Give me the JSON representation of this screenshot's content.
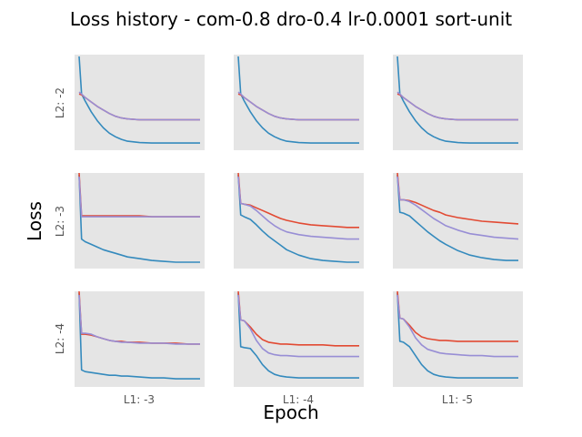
{
  "title": "Loss history - com-0.8 dro-0.4 lr-0.0001 sort-unit",
  "xlabel": "Epoch",
  "ylabel": "Loss",
  "colors": {
    "panel_bg": "#e5e5e5",
    "series_blue": "#348abd",
    "series_purple": "#988ed5",
    "series_red": "#e24a33"
  },
  "chart_data": {
    "type": "line",
    "grid": false,
    "title": "Loss history - com-0.8 dro-0.4 lr-0.0001 sort-unit",
    "xlabel": "Epoch",
    "ylabel": "Loss",
    "row_labels": [
      "L2: -2",
      "L2: -3",
      "L2: -4"
    ],
    "col_labels": [
      "L1: -3",
      "L1: -4",
      "L1: -5"
    ],
    "x": [
      0,
      0.02,
      0.05,
      0.1,
      0.15,
      0.2,
      0.25,
      0.3,
      0.35,
      0.4,
      0.5,
      0.6,
      0.7,
      0.8,
      0.9,
      1.0
    ],
    "panels": [
      {
        "row": 0,
        "col": 0,
        "series": [
          {
            "color": "#348abd",
            "values": [
              1.0,
              0.58,
              0.5,
              0.38,
              0.28,
              0.2,
              0.14,
              0.1,
              0.07,
              0.05,
              0.035,
              0.03,
              0.03,
              0.03,
              0.03,
              0.03
            ]
          },
          {
            "color": "#e24a33",
            "values": [
              0.58,
              0.57,
              0.54,
              0.49,
              0.44,
              0.4,
              0.36,
              0.33,
              0.31,
              0.3,
              0.29,
              0.29,
              0.29,
              0.29,
              0.29,
              0.29
            ]
          },
          {
            "color": "#988ed5",
            "values": [
              0.6,
              0.58,
              0.54,
              0.49,
              0.44,
              0.4,
              0.36,
              0.33,
              0.31,
              0.3,
              0.29,
              0.29,
              0.29,
              0.29,
              0.29,
              0.29
            ]
          }
        ]
      },
      {
        "row": 0,
        "col": 1,
        "series": [
          {
            "color": "#348abd",
            "values": [
              1.0,
              0.58,
              0.5,
              0.38,
              0.28,
              0.2,
              0.14,
              0.1,
              0.07,
              0.05,
              0.035,
              0.03,
              0.03,
              0.03,
              0.03,
              0.03
            ]
          },
          {
            "color": "#e24a33",
            "values": [
              0.58,
              0.57,
              0.54,
              0.49,
              0.44,
              0.4,
              0.36,
              0.33,
              0.31,
              0.3,
              0.29,
              0.29,
              0.29,
              0.29,
              0.29,
              0.29
            ]
          },
          {
            "color": "#988ed5",
            "values": [
              0.6,
              0.58,
              0.54,
              0.49,
              0.44,
              0.4,
              0.36,
              0.33,
              0.31,
              0.3,
              0.29,
              0.29,
              0.29,
              0.29,
              0.29,
              0.29
            ]
          }
        ]
      },
      {
        "row": 0,
        "col": 2,
        "series": [
          {
            "color": "#348abd",
            "values": [
              1.0,
              0.58,
              0.5,
              0.38,
              0.28,
              0.2,
              0.14,
              0.1,
              0.07,
              0.05,
              0.035,
              0.03,
              0.03,
              0.03,
              0.03,
              0.03
            ]
          },
          {
            "color": "#e24a33",
            "values": [
              0.58,
              0.57,
              0.54,
              0.49,
              0.44,
              0.4,
              0.36,
              0.33,
              0.31,
              0.3,
              0.29,
              0.29,
              0.29,
              0.29,
              0.29,
              0.29
            ]
          },
          {
            "color": "#988ed5",
            "values": [
              0.6,
              0.58,
              0.54,
              0.49,
              0.44,
              0.4,
              0.36,
              0.33,
              0.31,
              0.3,
              0.29,
              0.29,
              0.29,
              0.29,
              0.29,
              0.29
            ]
          }
        ]
      },
      {
        "row": 1,
        "col": 0,
        "series": [
          {
            "color": "#348abd",
            "values": [
              1.0,
              0.28,
              0.25,
              0.22,
              0.19,
              0.16,
              0.14,
              0.12,
              0.1,
              0.08,
              0.06,
              0.04,
              0.03,
              0.02,
              0.02,
              0.02
            ]
          },
          {
            "color": "#e24a33",
            "values": [
              1.02,
              0.54,
              0.54,
              0.54,
              0.54,
              0.54,
              0.54,
              0.54,
              0.54,
              0.54,
              0.54,
              0.53,
              0.53,
              0.53,
              0.53,
              0.53
            ]
          },
          {
            "color": "#988ed5",
            "values": [
              0.98,
              0.53,
              0.53,
              0.53,
              0.53,
              0.53,
              0.53,
              0.53,
              0.53,
              0.53,
              0.53,
              0.53,
              0.53,
              0.53,
              0.53,
              0.53
            ]
          }
        ]
      },
      {
        "row": 1,
        "col": 1,
        "series": [
          {
            "color": "#348abd",
            "values": [
              1.0,
              0.55,
              0.53,
              0.5,
              0.44,
              0.37,
              0.31,
              0.26,
              0.21,
              0.16,
              0.1,
              0.06,
              0.04,
              0.03,
              0.02,
              0.02
            ]
          },
          {
            "color": "#e24a33",
            "values": [
              1.02,
              0.68,
              0.67,
              0.66,
              0.63,
              0.6,
              0.57,
              0.54,
              0.51,
              0.49,
              0.46,
              0.44,
              0.43,
              0.42,
              0.41,
              0.41
            ]
          },
          {
            "color": "#988ed5",
            "values": [
              0.98,
              0.68,
              0.67,
              0.65,
              0.6,
              0.54,
              0.48,
              0.43,
              0.39,
              0.36,
              0.33,
              0.31,
              0.3,
              0.29,
              0.28,
              0.28
            ]
          }
        ]
      },
      {
        "row": 1,
        "col": 2,
        "series": [
          {
            "color": "#348abd",
            "values": [
              1.0,
              0.58,
              0.57,
              0.54,
              0.48,
              0.42,
              0.36,
              0.31,
              0.26,
              0.22,
              0.15,
              0.1,
              0.07,
              0.05,
              0.04,
              0.04
            ]
          },
          {
            "color": "#e24a33",
            "values": [
              1.02,
              0.72,
              0.72,
              0.71,
              0.69,
              0.66,
              0.63,
              0.6,
              0.58,
              0.55,
              0.52,
              0.5,
              0.48,
              0.47,
              0.46,
              0.45
            ]
          },
          {
            "color": "#988ed5",
            "values": [
              0.98,
              0.72,
              0.72,
              0.7,
              0.66,
              0.61,
              0.56,
              0.51,
              0.47,
              0.43,
              0.38,
              0.34,
              0.32,
              0.3,
              0.29,
              0.28
            ]
          }
        ]
      },
      {
        "row": 2,
        "col": 0,
        "series": [
          {
            "color": "#348abd",
            "values": [
              1.0,
              0.14,
              0.12,
              0.11,
              0.1,
              0.09,
              0.08,
              0.08,
              0.07,
              0.07,
              0.06,
              0.05,
              0.05,
              0.04,
              0.04,
              0.04
            ]
          },
          {
            "color": "#e24a33",
            "values": [
              1.02,
              0.54,
              0.54,
              0.53,
              0.51,
              0.49,
              0.47,
              0.46,
              0.46,
              0.45,
              0.45,
              0.44,
              0.44,
              0.44,
              0.43,
              0.43
            ]
          },
          {
            "color": "#988ed5",
            "values": [
              0.98,
              0.55,
              0.55,
              0.54,
              0.51,
              0.49,
              0.47,
              0.46,
              0.45,
              0.45,
              0.44,
              0.44,
              0.44,
              0.43,
              0.43,
              0.43
            ]
          }
        ]
      },
      {
        "row": 2,
        "col": 1,
        "series": [
          {
            "color": "#348abd",
            "values": [
              1.0,
              0.4,
              0.39,
              0.38,
              0.3,
              0.2,
              0.13,
              0.09,
              0.07,
              0.06,
              0.05,
              0.05,
              0.05,
              0.05,
              0.05,
              0.05
            ]
          },
          {
            "color": "#e24a33",
            "values": [
              1.02,
              0.7,
              0.69,
              0.62,
              0.54,
              0.48,
              0.45,
              0.44,
              0.43,
              0.43,
              0.42,
              0.42,
              0.42,
              0.41,
              0.41,
              0.41
            ]
          },
          {
            "color": "#988ed5",
            "values": [
              0.98,
              0.7,
              0.69,
              0.6,
              0.47,
              0.38,
              0.33,
              0.31,
              0.3,
              0.3,
              0.29,
              0.29,
              0.29,
              0.29,
              0.29,
              0.29
            ]
          }
        ]
      },
      {
        "row": 2,
        "col": 2,
        "series": [
          {
            "color": "#348abd",
            "values": [
              1.0,
              0.46,
              0.45,
              0.4,
              0.3,
              0.2,
              0.13,
              0.09,
              0.07,
              0.06,
              0.05,
              0.05,
              0.05,
              0.05,
              0.05,
              0.05
            ]
          },
          {
            "color": "#e24a33",
            "values": [
              1.02,
              0.72,
              0.71,
              0.64,
              0.56,
              0.51,
              0.49,
              0.48,
              0.47,
              0.47,
              0.46,
              0.46,
              0.46,
              0.46,
              0.46,
              0.46
            ]
          },
          {
            "color": "#988ed5",
            "values": [
              0.98,
              0.72,
              0.71,
              0.62,
              0.5,
              0.42,
              0.37,
              0.35,
              0.33,
              0.32,
              0.31,
              0.3,
              0.3,
              0.29,
              0.29,
              0.29
            ]
          }
        ]
      }
    ]
  }
}
